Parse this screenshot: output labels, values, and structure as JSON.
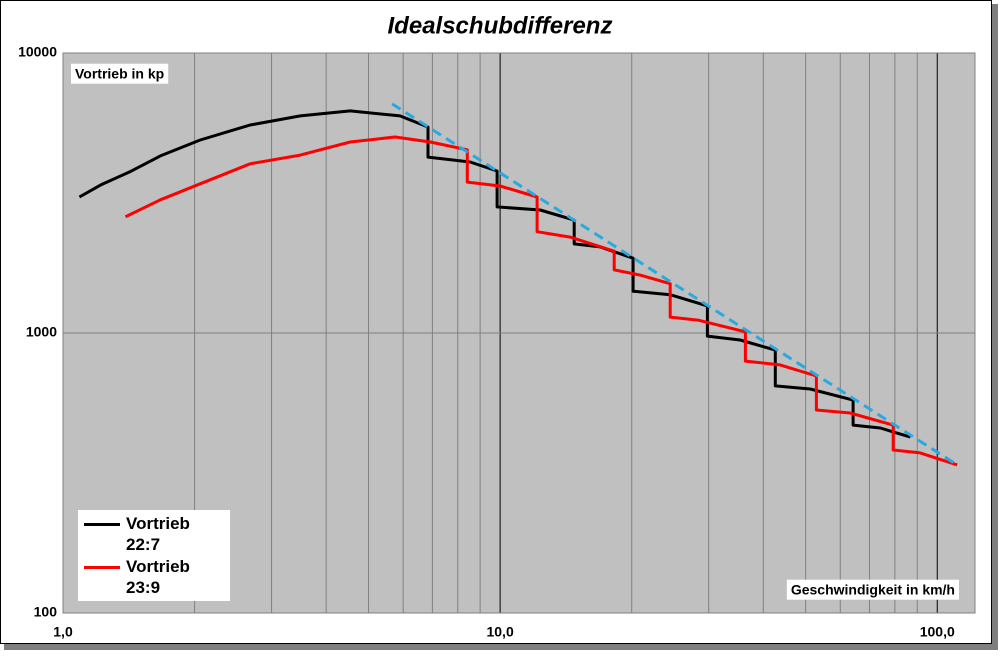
{
  "chart_data": {
    "type": "line",
    "title": "Idealschubdifferenz",
    "y_label": "Vortrieb in kp",
    "x_label": "Geschwindigkeit in km/h",
    "x_log": true,
    "y_log": true,
    "grid": true,
    "xlim": [
      1,
      122
    ],
    "ylim": [
      100,
      10000
    ],
    "xticks": [
      {
        "value": 1,
        "label": "1,0"
      },
      {
        "value": 10,
        "label": "10,0"
      },
      {
        "value": 100,
        "label": "100,0"
      }
    ],
    "x_minor_ticks": [
      2,
      3,
      4,
      5,
      6,
      7,
      8,
      9,
      20,
      30,
      40,
      50,
      60,
      70,
      80,
      90
    ],
    "yticks": [
      100,
      1000,
      10000
    ],
    "legend": "bottom-left",
    "series": [
      {
        "name": "Vortrieb 22:7",
        "color": "#000000",
        "x": [
          1.09,
          1.22,
          1.42,
          1.67,
          2.06,
          2.68,
          3.49,
          4.54,
          5.9,
          6.84,
          6.84,
          8.54,
          9.84,
          9.84,
          12.35,
          14.77,
          14.77,
          16.93,
          20.15,
          20.15,
          24.5,
          29.8,
          29.8,
          35.4,
          42.6,
          42.6,
          51.2,
          64.2,
          64.2,
          74.1,
          86.8
        ],
        "values": [
          3060,
          3380,
          3760,
          4290,
          4890,
          5530,
          5960,
          6210,
          5960,
          5440,
          4250,
          4080,
          3790,
          2820,
          2750,
          2530,
          2080,
          2030,
          1850,
          1410,
          1370,
          1250,
          975,
          944,
          869,
          647,
          631,
          576,
          469,
          458,
          425
        ]
      },
      {
        "name": "Vortrieb 23:9",
        "color": "#ff0000",
        "x": [
          1.39,
          1.67,
          2.06,
          2.68,
          3.49,
          4.54,
          5.75,
          6.92,
          8.41,
          8.41,
          10.0,
          12.15,
          12.15,
          14.46,
          18.24,
          18.24,
          20.9,
          24.5,
          24.5,
          28.5,
          36.4,
          36.4,
          43.7,
          52.9,
          52.9,
          63.2,
          79.3,
          79.3,
          91.4,
          111.1
        ],
        "values": [
          2600,
          2990,
          3410,
          4020,
          4320,
          4810,
          5010,
          4810,
          4510,
          3460,
          3350,
          3060,
          2300,
          2200,
          1960,
          1680,
          1610,
          1500,
          1140,
          1110,
          1010,
          794,
          769,
          702,
          531,
          518,
          469,
          382,
          373,
          338
        ]
      },
      {
        "color": "#29a9e0",
        "dash": true,
        "x": [
          5.66,
          111.1
        ],
        "values": [
          6580,
          338
        ]
      }
    ]
  }
}
